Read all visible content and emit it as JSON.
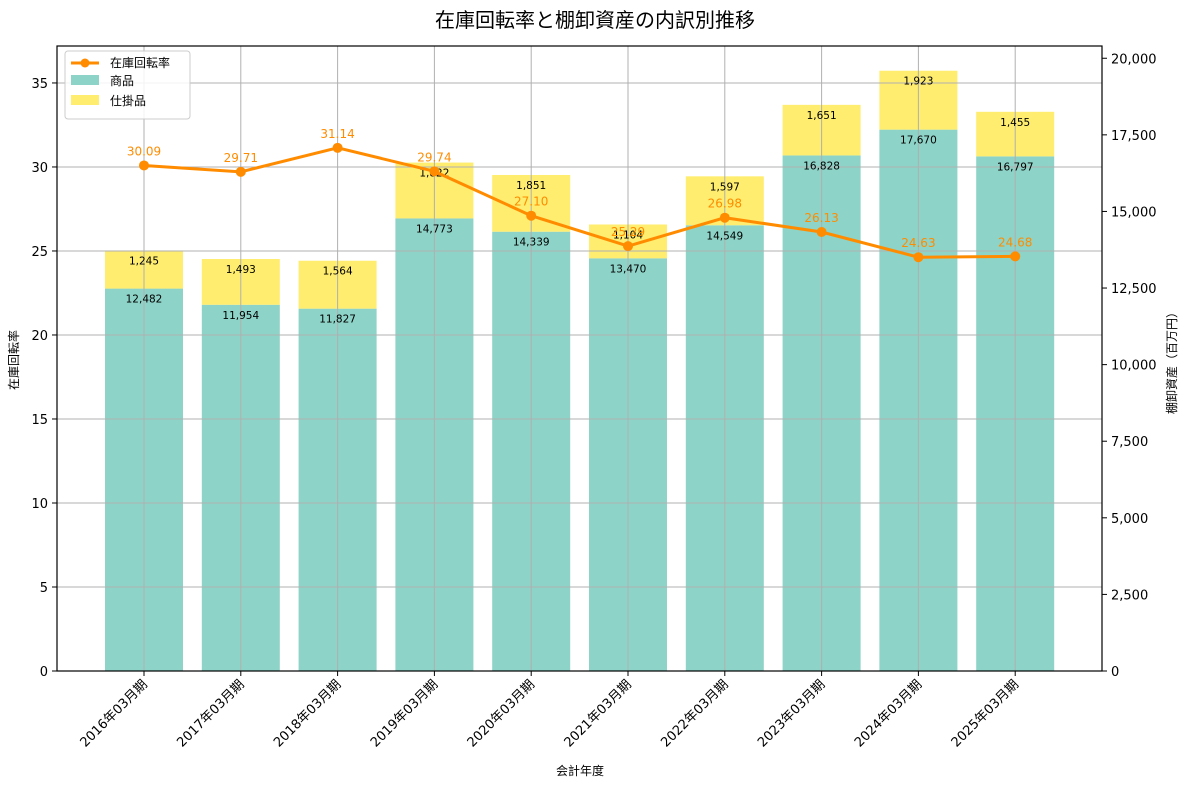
{
  "chart_data": {
    "type": "bar",
    "title": "在庫回転率と棚卸資産の内訳別推移",
    "xlabel": "会計年度",
    "ylabel": "在庫回転率",
    "ylabel_right": "棚卸資産（百万円）",
    "ylim": [
      0,
      37.2
    ],
    "ylim_right": [
      0,
      20400
    ],
    "yticks": [
      "0",
      "5",
      "10",
      "15",
      "20",
      "25",
      "30",
      "35"
    ],
    "yticks_right": [
      "0",
      "2,500",
      "5,000",
      "7,500",
      "10,000",
      "12,500",
      "15,000",
      "17,500",
      "20,000"
    ],
    "grid": true,
    "legend_position": "upper left",
    "categories": [
      "2016年03月期",
      "2017年03月期",
      "2018年03月期",
      "2019年03月期",
      "2020年03月期",
      "2021年03月期",
      "2022年03月期",
      "2023年03月期",
      "2024年03月期",
      "2025年03月期"
    ],
    "series": [
      {
        "name": "商品",
        "type": "stacked-bar",
        "axis": "right",
        "color": "#8dd3c7",
        "values": [
          12482,
          11954,
          11827,
          14773,
          14339,
          13470,
          14549,
          16828,
          17670,
          16797
        ],
        "labels": [
          "12,482",
          "11,954",
          "11,827",
          "14,773",
          "14,339",
          "13,470",
          "14,549",
          "16,828",
          "17,670",
          "16,797"
        ]
      },
      {
        "name": "仕掛品",
        "type": "stacked-bar",
        "axis": "right",
        "color": "#ffed6f",
        "values": [
          1245,
          1493,
          1564,
          1822,
          1851,
          1104,
          1597,
          1651,
          1923,
          1455
        ],
        "labels": [
          "1,245",
          "1,493",
          "1,564",
          "1,822",
          "1,851",
          "1,104",
          "1,597",
          "1,651",
          "1,923",
          "1,455"
        ]
      },
      {
        "name": "在庫回転率",
        "type": "line",
        "axis": "left",
        "color": "#ff8c00",
        "values": [
          30.09,
          29.71,
          31.14,
          29.74,
          27.1,
          25.29,
          26.98,
          26.13,
          24.63,
          24.68
        ],
        "labels": [
          "30.09",
          "29.71",
          "31.14",
          "29.74",
          "27.10",
          "25.29",
          "26.98",
          "26.13",
          "24.63",
          "24.68"
        ]
      }
    ]
  }
}
